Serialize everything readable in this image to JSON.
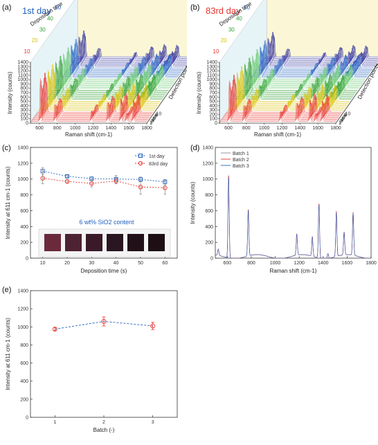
{
  "colors": {
    "red": "#e8322c",
    "blue": "#1f5fbf",
    "green": "#2e9e2e",
    "yellow": "#d9c200",
    "purple": "#2b2b9c",
    "orange": "#d9771a",
    "gray": "#8a8a8a"
  },
  "chart_data": [
    {
      "panel": "(a)",
      "type": "line",
      "title": "1st day",
      "xlabel": "Raman shift (cm-1)",
      "ylabel": "Intensity (counts)",
      "x_ticks": [
        "600",
        "800",
        "1000",
        "1200",
        "1400",
        "1600",
        "1800"
      ],
      "y_ticks": [
        "0",
        "100",
        "200",
        "300",
        "400",
        "500",
        "600",
        "700",
        "800",
        "900",
        "1000",
        "1100",
        "1200",
        "1300",
        "1400"
      ],
      "depth_axis_label": "Deposition time",
      "depth_groups": [
        "10",
        "20",
        "30",
        "40",
        "50",
        "60"
      ],
      "detection_axis_label": "Detection points",
      "detection_ticks": [
        "1",
        "2",
        "3",
        "4",
        "5",
        "6",
        "7",
        "8",
        "9",
        "10"
      ],
      "ylim": [
        0,
        1400
      ],
      "xlim": [
        500,
        1800
      ]
    },
    {
      "panel": "(b)",
      "type": "line",
      "title": "83rd day",
      "xlabel": "Raman shift (cm-1)",
      "ylabel": "Intensity (counts)",
      "x_ticks": [
        "600",
        "800",
        "1000",
        "1200",
        "1400",
        "1600",
        "1800"
      ],
      "y_ticks": [
        "0",
        "100",
        "200",
        "300",
        "400",
        "500",
        "600",
        "700",
        "800",
        "900",
        "1000",
        "1100",
        "1200",
        "1300",
        "1400"
      ],
      "depth_axis_label": "Deposition time",
      "depth_groups": [
        "10",
        "20",
        "30",
        "40",
        "50",
        "60"
      ],
      "detection_axis_label": "Detection points",
      "detection_ticks": [
        "1",
        "2",
        "3",
        "4",
        "5",
        "6",
        "7",
        "8",
        "9",
        "10"
      ],
      "ylim": [
        0,
        1400
      ],
      "xlim": [
        500,
        1800
      ]
    },
    {
      "panel": "(c)",
      "type": "line",
      "xlabel": "Deposition time (s)",
      "ylabel": "Intensity at 611 cm-1 (counts)",
      "annotation": "6 wt% SiO2 content",
      "x": [
        10,
        20,
        30,
        40,
        50,
        60
      ],
      "xlim": [
        5,
        65
      ],
      "ylim": [
        0,
        1400
      ],
      "x_ticks": [
        "10",
        "20",
        "30",
        "40",
        "50",
        "60"
      ],
      "y_ticks": [
        "0",
        "200",
        "400",
        "600",
        "800",
        "1000",
        "1200",
        "1400"
      ],
      "series": [
        {
          "name": "1st day",
          "values": [
            1100,
            1035,
            1005,
            1000,
            995,
            965
          ],
          "errors": [
            45,
            15,
            20,
            45,
            30,
            30
          ]
        },
        {
          "name": "83rd day",
          "values": [
            1010,
            970,
            945,
            975,
            900,
            890
          ],
          "errors": [
            70,
            20,
            45,
            35,
            90,
            80
          ]
        }
      ],
      "legend": "top-right"
    },
    {
      "panel": "(d)",
      "type": "line",
      "xlabel": "Raman shift (cm-1)",
      "ylabel": "Intensity (counts)",
      "xlim": [
        500,
        1800
      ],
      "ylim": [
        0,
        1400
      ],
      "x_ticks": [
        "600",
        "800",
        "1000",
        "1200",
        "1400",
        "1600",
        "1800"
      ],
      "y_ticks": [
        "0",
        "200",
        "400",
        "600",
        "800",
        "1000",
        "1200",
        "1400"
      ],
      "series": [
        {
          "name": "Batch 1"
        },
        {
          "name": "Batch 2"
        },
        {
          "name": "Batch 3"
        }
      ],
      "peaks": [
        [
          525,
          80
        ],
        [
          611,
          1050
        ],
        [
          775,
          590
        ],
        [
          1180,
          270
        ],
        [
          1310,
          250
        ],
        [
          1365,
          690
        ],
        [
          1440,
          60
        ],
        [
          1510,
          570
        ],
        [
          1575,
          290
        ],
        [
          1650,
          540
        ]
      ],
      "legend": "top-left"
    },
    {
      "panel": "(e)",
      "type": "line",
      "xlabel": "Batch (-)",
      "ylabel": "Intensity at 611 cm-1 (counts)",
      "x": [
        1,
        2,
        3
      ],
      "values": [
        975,
        1060,
        1010
      ],
      "errors": [
        15,
        50,
        40
      ],
      "xlim": [
        0.5,
        3.5
      ],
      "ylim": [
        0,
        1400
      ],
      "x_ticks": [
        "1",
        "2",
        "3"
      ],
      "y_ticks": [
        "0",
        "200",
        "400",
        "600",
        "800",
        "1000",
        "1200",
        "1400"
      ]
    }
  ]
}
